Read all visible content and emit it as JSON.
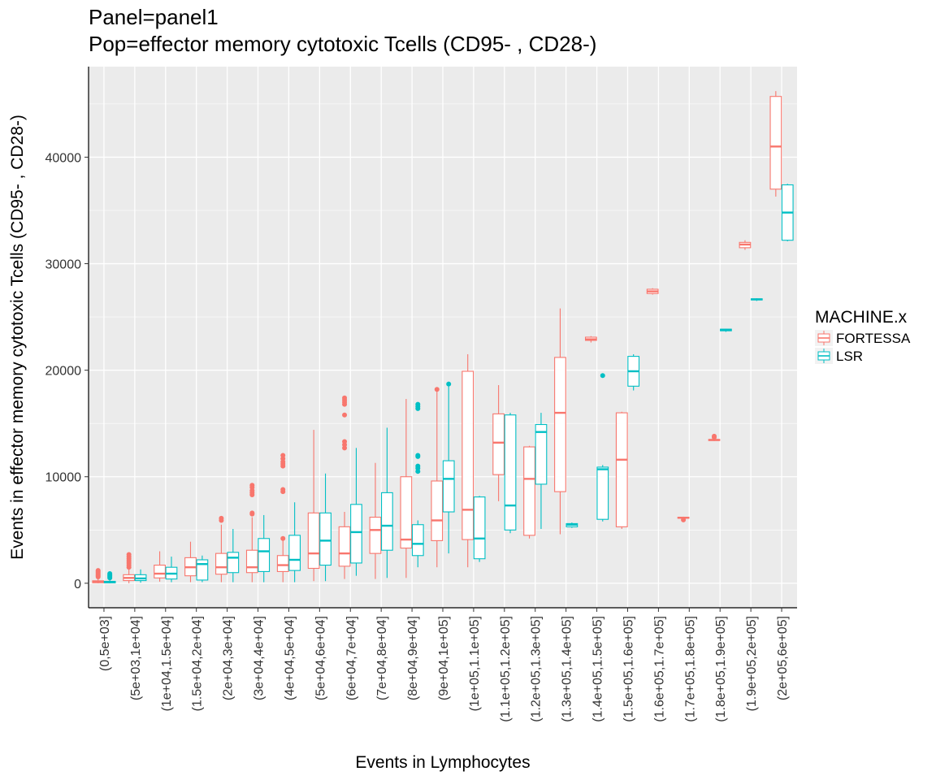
{
  "chart_data": {
    "type": "boxplot",
    "title": "Panel=panel1",
    "subtitle": "Pop=effector memory cytotoxic Tcells (CD95- , CD28-)",
    "xlabel": "Events in Lymphocytes",
    "ylabel": "Events in effector memory cytotoxic Tcells (CD95- , CD28-)",
    "ylim": [
      -2300,
      48500
    ],
    "yticks": [
      0,
      10000,
      20000,
      30000,
      40000
    ],
    "grid": true,
    "legend": {
      "title": "MACHINE.x",
      "position": "right"
    },
    "colors": {
      "FORTESSA": "#F8766D",
      "LSR": "#00BFC4",
      "panel_bg": "#EBEBEB",
      "grid": "#FFFFFF"
    },
    "categories": [
      "(0,5e+03]",
      "(5e+03,1e+04]",
      "(1e+04,1.5e+04]",
      "(1.5e+04,2e+04]",
      "(2e+04,3e+04]",
      "(3e+04,4e+04]",
      "(4e+04,5e+04]",
      "(5e+04,6e+04]",
      "(6e+04,7e+04]",
      "(7e+04,8e+04]",
      "(8e+04,9e+04]",
      "(9e+04,1e+05]",
      "(1e+05,1.1e+05]",
      "(1.1e+05,1.2e+05]",
      "(1.2e+05,1.3e+05]",
      "(1.3e+05,1.4e+05]",
      "(1.4e+05,1.5e+05]",
      "(1.5e+05,1.6e+05]",
      "(1.6e+05,1.7e+05]",
      "(1.7e+05,1.8e+05]",
      "(1.8e+05,1.9e+05]",
      "(1.9e+05,2e+05]",
      "(2e+05,6e+05]"
    ],
    "series": [
      {
        "name": "FORTESSA",
        "boxes": [
          {
            "cat": 0,
            "lo": 0,
            "q1": 50,
            "med": 120,
            "q3": 230,
            "hi": 500,
            "outliers": [
              600,
              700,
              800,
              900,
              1000,
              1100,
              1200
            ]
          },
          {
            "cat": 1,
            "lo": 0,
            "q1": 250,
            "med": 500,
            "q3": 800,
            "hi": 1300,
            "outliers": [
              1500,
              1700,
              1900,
              2100,
              2300,
              2500,
              2700
            ]
          },
          {
            "cat": 2,
            "lo": 150,
            "q1": 500,
            "med": 900,
            "q3": 1700,
            "hi": 3000,
            "outliers": []
          },
          {
            "cat": 3,
            "lo": 100,
            "q1": 700,
            "med": 1500,
            "q3": 2400,
            "hi": 3900,
            "outliers": []
          },
          {
            "cat": 4,
            "lo": 100,
            "q1": 850,
            "med": 1500,
            "q3": 2800,
            "hi": 5500,
            "outliers": [
              5900,
              6100
            ]
          },
          {
            "cat": 5,
            "lo": 100,
            "q1": 1000,
            "med": 1500,
            "q3": 3100,
            "hi": 6200,
            "outliers": [
              6500,
              6600,
              8300,
              8500,
              8700,
              9000,
              9200
            ]
          },
          {
            "cat": 6,
            "lo": 100,
            "q1": 1100,
            "med": 1700,
            "q3": 2600,
            "hi": 4000,
            "outliers": [
              4200,
              8600,
              8800,
              11000,
              11200,
              11400,
              11700,
              12000
            ]
          },
          {
            "cat": 7,
            "lo": 200,
            "q1": 1400,
            "med": 2800,
            "q3": 6600,
            "hi": 14400,
            "outliers": []
          },
          {
            "cat": 8,
            "lo": 400,
            "q1": 1600,
            "med": 2800,
            "q3": 5300,
            "hi": 6700,
            "outliers": [
              12700,
              13000,
              13300,
              15800,
              16800,
              17000,
              17200,
              17400
            ]
          },
          {
            "cat": 9,
            "lo": 400,
            "q1": 2800,
            "med": 5000,
            "q3": 6200,
            "hi": 11300,
            "outliers": []
          },
          {
            "cat": 10,
            "lo": 500,
            "q1": 3300,
            "med": 4100,
            "q3": 10000,
            "hi": 17300,
            "outliers": []
          },
          {
            "cat": 11,
            "lo": 1500,
            "q1": 4000,
            "med": 5900,
            "q3": 9600,
            "hi": 18200,
            "outliers": [
              18200
            ]
          },
          {
            "cat": 12,
            "lo": 1500,
            "q1": 4100,
            "med": 6900,
            "q3": 19900,
            "hi": 21500,
            "outliers": []
          },
          {
            "cat": 13,
            "lo": 7700,
            "q1": 10200,
            "med": 13200,
            "q3": 15900,
            "hi": 18600,
            "outliers": []
          },
          {
            "cat": 14,
            "lo": 4200,
            "q1": 4500,
            "med": 9800,
            "q3": 12800,
            "hi": 12900,
            "outliers": []
          },
          {
            "cat": 15,
            "lo": 4600,
            "q1": 8600,
            "med": 16000,
            "q3": 21200,
            "hi": 25800,
            "outliers": []
          },
          {
            "cat": 16,
            "lo": 22600,
            "q1": 22800,
            "med": 22900,
            "q3": 23100,
            "hi": 23200,
            "outliers": []
          },
          {
            "cat": 17,
            "lo": 5100,
            "q1": 5300,
            "med": 11600,
            "q3": 16000,
            "hi": 16100,
            "outliers": []
          },
          {
            "cat": 18,
            "lo": 27100,
            "q1": 27200,
            "med": 27400,
            "q3": 27600,
            "hi": 27700,
            "outliers": []
          },
          {
            "cat": 19,
            "lo": 6050,
            "q1": 6100,
            "med": 6150,
            "q3": 6200,
            "hi": 6250,
            "outliers": [
              5950
            ]
          },
          {
            "cat": 20,
            "lo": 13350,
            "q1": 13400,
            "med": 13450,
            "q3": 13500,
            "hi": 13550,
            "outliers": [
              13700,
              13800
            ]
          },
          {
            "cat": 21,
            "lo": 31300,
            "q1": 31500,
            "med": 31800,
            "q3": 32000,
            "hi": 32200,
            "outliers": []
          },
          {
            "cat": 22,
            "lo": 36300,
            "q1": 37000,
            "med": 41000,
            "q3": 45700,
            "hi": 46200,
            "outliers": []
          }
        ]
      },
      {
        "name": "LSR",
        "boxes": [
          {
            "cat": 0,
            "lo": 0,
            "q1": 50,
            "med": 100,
            "q3": 180,
            "hi": 400,
            "outliers": [
              500,
              600,
              700,
              800,
              900
            ]
          },
          {
            "cat": 1,
            "lo": 50,
            "q1": 250,
            "med": 450,
            "q3": 800,
            "hi": 1300,
            "outliers": []
          },
          {
            "cat": 2,
            "lo": 100,
            "q1": 400,
            "med": 900,
            "q3": 1500,
            "hi": 2500,
            "outliers": []
          },
          {
            "cat": 3,
            "lo": 100,
            "q1": 300,
            "med": 1800,
            "q3": 2200,
            "hi": 2600,
            "outliers": []
          },
          {
            "cat": 4,
            "lo": 100,
            "q1": 1000,
            "med": 2400,
            "q3": 2900,
            "hi": 5100,
            "outliers": []
          },
          {
            "cat": 5,
            "lo": 100,
            "q1": 1100,
            "med": 3000,
            "q3": 4200,
            "hi": 6400,
            "outliers": []
          },
          {
            "cat": 6,
            "lo": 100,
            "q1": 1200,
            "med": 2200,
            "q3": 4500,
            "hi": 7600,
            "outliers": []
          },
          {
            "cat": 7,
            "lo": 200,
            "q1": 1700,
            "med": 4000,
            "q3": 6600,
            "hi": 10300,
            "outliers": []
          },
          {
            "cat": 8,
            "lo": 700,
            "q1": 1900,
            "med": 4800,
            "q3": 7400,
            "hi": 12700,
            "outliers": []
          },
          {
            "cat": 9,
            "lo": 500,
            "q1": 3100,
            "med": 5400,
            "q3": 8500,
            "hi": 14600,
            "outliers": []
          },
          {
            "cat": 10,
            "lo": 1500,
            "q1": 2600,
            "med": 3700,
            "q3": 5500,
            "hi": 5900,
            "outliers": [
              10500,
              10800,
              11000,
              11900,
              12000,
              16400,
              16600,
              16800
            ]
          },
          {
            "cat": 11,
            "lo": 2800,
            "q1": 6700,
            "med": 9800,
            "q3": 11500,
            "hi": 18500,
            "outliers": [
              18700
            ]
          },
          {
            "cat": 12,
            "lo": 2000,
            "q1": 2300,
            "med": 4200,
            "q3": 8100,
            "hi": 8200,
            "outliers": []
          },
          {
            "cat": 13,
            "lo": 4700,
            "q1": 5000,
            "med": 7300,
            "q3": 15800,
            "hi": 16000,
            "outliers": []
          },
          {
            "cat": 14,
            "lo": 5100,
            "q1": 9300,
            "med": 14200,
            "q3": 14900,
            "hi": 16000,
            "outliers": []
          },
          {
            "cat": 15,
            "lo": 5200,
            "q1": 5300,
            "med": 5500,
            "q3": 5600,
            "hi": 5700,
            "outliers": []
          },
          {
            "cat": 16,
            "lo": 5800,
            "q1": 6000,
            "med": 10700,
            "q3": 10900,
            "hi": 11100,
            "outliers": [
              19500
            ]
          },
          {
            "cat": 17,
            "lo": 18100,
            "q1": 18500,
            "med": 19900,
            "q3": 21300,
            "hi": 21500,
            "outliers": []
          },
          {
            "cat": 20,
            "lo": 23600,
            "q1": 23700,
            "med": 23800,
            "q3": 23850,
            "hi": 23900,
            "outliers": []
          },
          {
            "cat": 21,
            "lo": 26500,
            "q1": 26600,
            "med": 26650,
            "q3": 26700,
            "hi": 26750,
            "outliers": []
          },
          {
            "cat": 22,
            "lo": 32100,
            "q1": 32200,
            "med": 34800,
            "q3": 37400,
            "hi": 37500,
            "outliers": []
          }
        ]
      }
    ]
  }
}
